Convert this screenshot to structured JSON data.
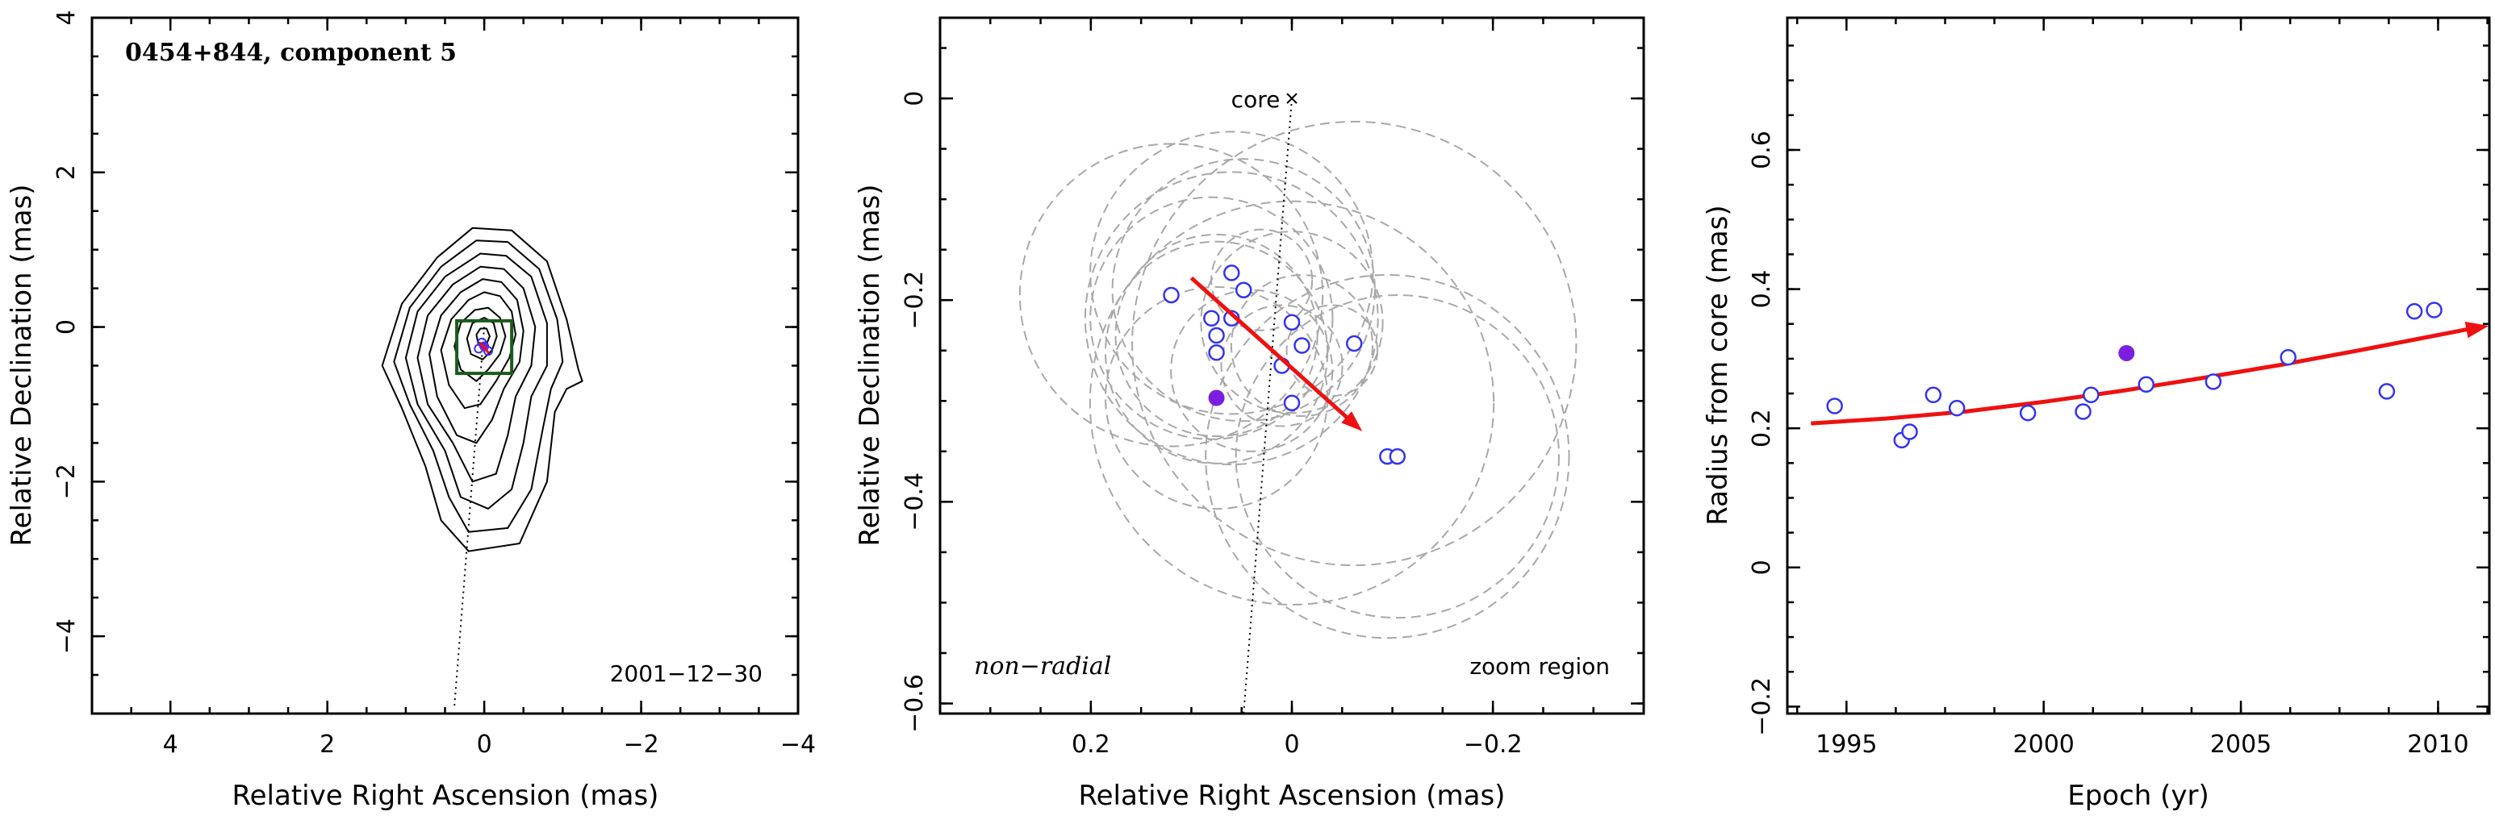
{
  "chart_data": [
    {
      "type": "contour",
      "title": "0454+844, component 5",
      "xlabel": "Relative Right Ascension (mas)",
      "ylabel": "Relative Declination (mas)",
      "xlim": [
        5,
        -4
      ],
      "ylim": [
        -5,
        4
      ],
      "x_ticks": [
        4,
        2,
        0,
        -2,
        -4
      ],
      "y_ticks": [
        -4,
        -2,
        0,
        2,
        4
      ],
      "x_tick_labels": [
        "4",
        "2",
        "0",
        "−2",
        "−4"
      ],
      "y_tick_labels": [
        "−4",
        "−2",
        "0",
        "2",
        "4"
      ],
      "epoch_label": "2001−12−30",
      "contours": [
        [
          [
            1.05,
            -1.05
          ],
          [
            1.3,
            -0.5
          ],
          [
            1.05,
            0.3
          ],
          [
            0.6,
            0.9
          ],
          [
            0.15,
            1.28
          ],
          [
            -0.35,
            1.25
          ],
          [
            -0.8,
            0.85
          ],
          [
            -1.05,
            0.1
          ],
          [
            -1.2,
            -0.55
          ],
          [
            -1.25,
            -0.7
          ],
          [
            -1.05,
            -0.8
          ],
          [
            -0.9,
            -1.1
          ],
          [
            -0.8,
            -2.0
          ],
          [
            -0.45,
            -2.8
          ],
          [
            0.2,
            -2.9
          ],
          [
            0.55,
            -2.5
          ],
          [
            0.75,
            -1.8
          ],
          [
            1.05,
            -1.05
          ]
        ],
        [
          [
            0.95,
            -1.0
          ],
          [
            1.15,
            -0.45
          ],
          [
            0.95,
            0.25
          ],
          [
            0.55,
            0.78
          ],
          [
            0.1,
            1.12
          ],
          [
            -0.3,
            1.1
          ],
          [
            -0.7,
            0.75
          ],
          [
            -0.93,
            0.1
          ],
          [
            -1.0,
            -0.45
          ],
          [
            -0.85,
            -0.8
          ],
          [
            -0.75,
            -1.3
          ],
          [
            -0.6,
            -2.1
          ],
          [
            -0.3,
            -2.6
          ],
          [
            0.2,
            -2.65
          ],
          [
            0.45,
            -2.2
          ],
          [
            0.65,
            -1.6
          ],
          [
            0.95,
            -1.0
          ]
        ],
        [
          [
            0.85,
            -1.0
          ],
          [
            1.0,
            -0.4
          ],
          [
            0.85,
            0.2
          ],
          [
            0.5,
            0.65
          ],
          [
            0.05,
            0.95
          ],
          [
            -0.28,
            0.92
          ],
          [
            -0.6,
            0.65
          ],
          [
            -0.8,
            0.05
          ],
          [
            -0.8,
            -0.5
          ],
          [
            -0.6,
            -0.9
          ],
          [
            -0.5,
            -1.5
          ],
          [
            -0.35,
            -2.1
          ],
          [
            -0.05,
            -2.35
          ],
          [
            0.3,
            -2.2
          ],
          [
            0.5,
            -1.6
          ],
          [
            0.85,
            -1.0
          ]
        ],
        [
          [
            0.72,
            -1.0
          ],
          [
            0.85,
            -0.4
          ],
          [
            0.72,
            0.15
          ],
          [
            0.4,
            0.55
          ],
          [
            0.05,
            0.78
          ],
          [
            -0.25,
            0.75
          ],
          [
            -0.5,
            0.5
          ],
          [
            -0.65,
            0.0
          ],
          [
            -0.6,
            -0.5
          ],
          [
            -0.4,
            -0.9
          ],
          [
            -0.3,
            -1.4
          ],
          [
            -0.15,
            -1.9
          ],
          [
            0.15,
            -2.0
          ],
          [
            0.4,
            -1.5
          ],
          [
            0.72,
            -1.0
          ]
        ],
        [
          [
            0.6,
            -0.9
          ],
          [
            0.7,
            -0.35
          ],
          [
            0.55,
            0.15
          ],
          [
            0.3,
            0.45
          ],
          [
            0.02,
            0.62
          ],
          [
            -0.22,
            0.58
          ],
          [
            -0.42,
            0.35
          ],
          [
            -0.5,
            -0.05
          ],
          [
            -0.45,
            -0.45
          ],
          [
            -0.25,
            -0.8
          ],
          [
            -0.1,
            -1.2
          ],
          [
            0.1,
            -1.5
          ],
          [
            0.35,
            -1.4
          ],
          [
            0.6,
            -0.9
          ]
        ],
        [
          [
            0.45,
            -0.75
          ],
          [
            0.55,
            -0.3
          ],
          [
            0.42,
            0.1
          ],
          [
            0.2,
            0.35
          ],
          [
            0.0,
            0.45
          ],
          [
            -0.2,
            0.4
          ],
          [
            -0.35,
            0.2
          ],
          [
            -0.4,
            -0.1
          ],
          [
            -0.32,
            -0.4
          ],
          [
            -0.15,
            -0.7
          ],
          [
            0.05,
            -1.0
          ],
          [
            0.25,
            -1.05
          ],
          [
            0.45,
            -0.75
          ]
        ],
        [
          [
            0.3,
            -0.55
          ],
          [
            0.38,
            -0.25
          ],
          [
            0.3,
            0.05
          ],
          [
            0.12,
            0.22
          ],
          [
            -0.05,
            0.25
          ],
          [
            -0.2,
            0.12
          ],
          [
            -0.27,
            -0.12
          ],
          [
            -0.2,
            -0.35
          ],
          [
            -0.05,
            -0.55
          ],
          [
            0.1,
            -0.7
          ],
          [
            0.3,
            -0.55
          ]
        ],
        [
          [
            0.17,
            -0.35
          ],
          [
            0.22,
            -0.15
          ],
          [
            0.15,
            0.05
          ],
          [
            0.0,
            0.12
          ],
          [
            -0.12,
            0.05
          ],
          [
            -0.16,
            -0.12
          ],
          [
            -0.1,
            -0.3
          ],
          [
            0.02,
            -0.42
          ],
          [
            0.17,
            -0.35
          ]
        ],
        [
          [
            0.08,
            -0.2
          ],
          [
            0.1,
            -0.1
          ],
          [
            0.05,
            -0.02
          ],
          [
            -0.03,
            -0.02
          ],
          [
            -0.07,
            -0.12
          ],
          [
            -0.03,
            -0.22
          ],
          [
            0.08,
            -0.2
          ]
        ]
      ],
      "zoom_box": {
        "x": [
          0.35,
          -0.35
        ],
        "y": [
          -0.6,
          0.08
        ],
        "color": "#1a5c1a"
      },
      "feature_points": [
        [
          0.03,
          -0.2
        ],
        [
          0.07,
          -0.28
        ],
        [
          0.0,
          -0.25
        ],
        [
          -0.05,
          -0.31
        ]
      ],
      "highlight_point": [
        0.0,
        -0.26
      ],
      "ridge_line": [
        [
          0.0,
          0.0
        ],
        [
          0.38,
          -4.9
        ]
      ],
      "marker_color": "#3333ee",
      "highlight_color": "#7a1fe0",
      "arrow_color": "#ee1111"
    },
    {
      "type": "scatter",
      "xlabel": "Relative Right Ascension (mas)",
      "ylabel": "Relative Declination (mas)",
      "xlim": [
        0.35,
        -0.35
      ],
      "ylim": [
        -0.61,
        0.08
      ],
      "x_ticks": [
        0.2,
        0,
        -0.2
      ],
      "y_ticks": [
        -0.6,
        -0.4,
        -0.2,
        0
      ],
      "x_tick_labels": [
        "0.2",
        "0",
        "−0.2"
      ],
      "y_tick_labels": [
        "−0.6",
        "−0.4",
        "−0.2",
        "0"
      ],
      "core_label": "core",
      "core_point": [
        0.0,
        0.0
      ],
      "motion_label": "non−radial",
      "zoom_label": "zoom region",
      "points": [
        [
          0.12,
          -0.195
        ],
        [
          0.06,
          -0.173
        ],
        [
          0.048,
          -0.19
        ],
        [
          0.08,
          -0.218
        ],
        [
          0.06,
          -0.218
        ],
        [
          0.075,
          -0.235
        ],
        [
          0.075,
          -0.252
        ],
        [
          0.0,
          -0.222
        ],
        [
          -0.01,
          -0.245
        ],
        [
          0.01,
          -0.265
        ],
        [
          0.0,
          -0.302
        ],
        [
          -0.062,
          -0.243
        ],
        [
          -0.095,
          -0.355
        ],
        [
          -0.105,
          -0.355
        ]
      ],
      "highlight_point": [
        0.075,
        -0.297
      ],
      "component_sizes": [
        0.15,
        0.14,
        0.13,
        0.12,
        0.145,
        0.1,
        0.11,
        0.09,
        0.07,
        0.06,
        0.2,
        0.22,
        0.18,
        0.16,
        0.05,
        0.045,
        0.11,
        0.08
      ],
      "component_centers": [
        [
          0.12,
          -0.195
        ],
        [
          0.06,
          -0.173
        ],
        [
          0.048,
          -0.19
        ],
        [
          0.08,
          -0.218
        ],
        [
          0.06,
          -0.218
        ],
        [
          0.075,
          -0.235
        ],
        [
          0.075,
          -0.252
        ],
        [
          0.0,
          -0.222
        ],
        [
          -0.01,
          -0.245
        ],
        [
          0.01,
          -0.265
        ],
        [
          0.0,
          -0.302
        ],
        [
          -0.062,
          -0.243
        ],
        [
          -0.095,
          -0.355
        ],
        [
          -0.105,
          -0.355
        ],
        [
          0.03,
          -0.18
        ],
        [
          -0.04,
          -0.25
        ],
        [
          0.075,
          -0.297
        ],
        [
          0.04,
          -0.27
        ]
      ],
      "arrow": {
        "from": [
          0.1,
          -0.178
        ],
        "to": [
          -0.07,
          -0.33
        ]
      },
      "ridge_line": [
        [
          0.0,
          0.0
        ],
        [
          0.048,
          -0.61
        ]
      ]
    },
    {
      "type": "scatter",
      "xlabel": "Epoch (yr)",
      "ylabel": "Radius from core (mas)",
      "xlim": [
        1993.5,
        2011.3
      ],
      "ylim": [
        -0.21,
        0.79
      ],
      "x_ticks": [
        1995,
        2000,
        2005,
        2010
      ],
      "y_ticks": [
        -0.2,
        0,
        0.2,
        0.4,
        0.6
      ],
      "x_tick_labels": [
        "1995",
        "2000",
        "2005",
        "2010"
      ],
      "y_tick_labels": [
        "−0.2",
        "0",
        "0.2",
        "0.4",
        "0.6"
      ],
      "points": [
        [
          1994.7,
          0.232
        ],
        [
          1996.4,
          0.183
        ],
        [
          1996.6,
          0.195
        ],
        [
          1997.2,
          0.248
        ],
        [
          1997.8,
          0.229
        ],
        [
          1999.6,
          0.222
        ],
        [
          2001.0,
          0.224
        ],
        [
          2001.2,
          0.248
        ],
        [
          2002.6,
          0.263
        ],
        [
          2004.3,
          0.267
        ],
        [
          2006.2,
          0.302
        ],
        [
          2008.7,
          0.253
        ],
        [
          2009.4,
          0.368
        ],
        [
          2009.9,
          0.37
        ]
      ],
      "highlight_point": [
        2002.1,
        0.308
      ],
      "fit_curve": [
        [
          1994.1,
          0.207
        ],
        [
          1996.0,
          0.214
        ],
        [
          1998.0,
          0.224
        ],
        [
          2000.0,
          0.238
        ],
        [
          2002.0,
          0.254
        ],
        [
          2004.0,
          0.272
        ],
        [
          2006.0,
          0.291
        ],
        [
          2008.0,
          0.312
        ],
        [
          2010.0,
          0.334
        ],
        [
          2011.0,
          0.345
        ]
      ]
    }
  ]
}
